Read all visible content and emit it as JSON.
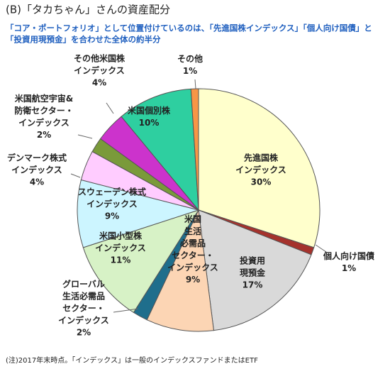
{
  "chart_data": {
    "type": "pie",
    "title": "(B)「タカちゃん」さんの資産配分",
    "subtitle": [
      "「コア・ポートフォリオ」として位置付けているのは、「先進国株インデックス」「個人向け国債」と",
      "「投資用現預金」を合わせた全体の約半分"
    ],
    "footnote": "(注)2017年末時点。「インデックス」は一般のインデックスファンドまたはETF",
    "categories": [
      [
        "先進国株",
        "インデックス"
      ],
      [
        "個人向け国債"
      ],
      [
        "投資用",
        "現預金"
      ],
      [
        "米国",
        "生活",
        "必需品",
        "セクター・",
        "インデックス"
      ],
      [
        "グローバル",
        "生活必需品",
        "セクター・",
        "インデックス"
      ],
      [
        "米国小型株",
        "インデックス"
      ],
      [
        "スウェーデン株式",
        "インデックス"
      ],
      [
        "デンマーク株式",
        "インデックス"
      ],
      [
        "米国航空宇宙&",
        "防衛セクター・",
        "インデックス"
      ],
      [
        "その他米国株",
        "インデックス"
      ],
      [
        "米国個別株"
      ],
      [
        "その他"
      ]
    ],
    "values": [
      30,
      1,
      17,
      9,
      2,
      11,
      9,
      4,
      2,
      4,
      10,
      1
    ],
    "value_labels": [
      "30%",
      "1%",
      "17%",
      "9%",
      "2%",
      "11%",
      "9%",
      "4%",
      "2%",
      "4%",
      "10%",
      "1%"
    ],
    "colors": [
      "#ffffcc",
      "#a5322c",
      "#d9d9d9",
      "#fcd5b4",
      "#1f6e8c",
      "#d7f2c6",
      "#ccf5ff",
      "#ffccff",
      "#7a9a3a",
      "#cc33cc",
      "#2ecfa0",
      "#f79646"
    ]
  }
}
